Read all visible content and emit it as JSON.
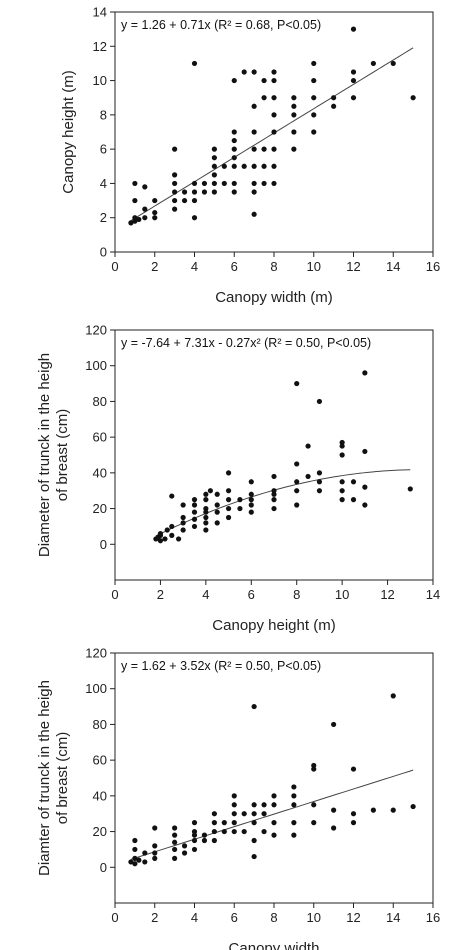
{
  "chart_data": [
    {
      "type": "scatter",
      "xlabel": "Canopy width (m)",
      "ylabel": "Canopy height (m)",
      "equation": "y = 1.26 + 0.71x (R² = 0.68, P<0.05)",
      "xlim": [
        0,
        16
      ],
      "ylim": [
        0,
        14
      ],
      "xticks": [
        0,
        2,
        4,
        6,
        8,
        10,
        12,
        14,
        16
      ],
      "yticks": [
        0,
        2,
        4,
        6,
        8,
        10,
        12,
        14
      ],
      "fit": {
        "kind": "linear",
        "coef": [
          1.26,
          0.71
        ],
        "x_range": [
          0.7,
          15
        ]
      },
      "points": [
        [
          0.8,
          1.7
        ],
        [
          1,
          1.8
        ],
        [
          1,
          2
        ],
        [
          1.2,
          1.9
        ],
        [
          1,
          3
        ],
        [
          1,
          4
        ],
        [
          1.5,
          3.8
        ],
        [
          1.5,
          2
        ],
        [
          1.5,
          2.5
        ],
        [
          2,
          2
        ],
        [
          2,
          2.3
        ],
        [
          2,
          3
        ],
        [
          3,
          2.5
        ],
        [
          3,
          3
        ],
        [
          3,
          3.5
        ],
        [
          3,
          4
        ],
        [
          3,
          4.5
        ],
        [
          3,
          6
        ],
        [
          3.5,
          3
        ],
        [
          3.5,
          3.5
        ],
        [
          4,
          2
        ],
        [
          4,
          3
        ],
        [
          4,
          3.5
        ],
        [
          4,
          4
        ],
        [
          4,
          11
        ],
        [
          4.5,
          3.5
        ],
        [
          4.5,
          4
        ],
        [
          5,
          3.5
        ],
        [
          5,
          4
        ],
        [
          5,
          4.5
        ],
        [
          5,
          5
        ],
        [
          5,
          5.5
        ],
        [
          5,
          6
        ],
        [
          5.5,
          4
        ],
        [
          5.5,
          5
        ],
        [
          6,
          3.5
        ],
        [
          6,
          4
        ],
        [
          6,
          5
        ],
        [
          6,
          5.5
        ],
        [
          6,
          6
        ],
        [
          6,
          6.5
        ],
        [
          6,
          7
        ],
        [
          6,
          10
        ],
        [
          6.5,
          5
        ],
        [
          6.5,
          10.5
        ],
        [
          7,
          2.2
        ],
        [
          7,
          3.5
        ],
        [
          7,
          4
        ],
        [
          7,
          5
        ],
        [
          7,
          6
        ],
        [
          7,
          7
        ],
        [
          7,
          8.5
        ],
        [
          7,
          10.5
        ],
        [
          7.5,
          4
        ],
        [
          7.5,
          5
        ],
        [
          7.5,
          6
        ],
        [
          7.5,
          9
        ],
        [
          7.5,
          10
        ],
        [
          8,
          4
        ],
        [
          8,
          5
        ],
        [
          8,
          6
        ],
        [
          8,
          7
        ],
        [
          8,
          8
        ],
        [
          8,
          9
        ],
        [
          8,
          10
        ],
        [
          8,
          10.5
        ],
        [
          9,
          6
        ],
        [
          9,
          7
        ],
        [
          9,
          8
        ],
        [
          9,
          8.5
        ],
        [
          9,
          9
        ],
        [
          10,
          7
        ],
        [
          10,
          8
        ],
        [
          10,
          9
        ],
        [
          10,
          10
        ],
        [
          10,
          11
        ],
        [
          11,
          8.5
        ],
        [
          11,
          9
        ],
        [
          12,
          9
        ],
        [
          12,
          10
        ],
        [
          12,
          10.5
        ],
        [
          12,
          13
        ],
        [
          13,
          11
        ],
        [
          14,
          11
        ],
        [
          15,
          9
        ]
      ]
    },
    {
      "type": "scatter",
      "xlabel": "Canopy height (m)",
      "ylabel": "Diameter of trunck in the heigh of breast (cm)",
      "ylabel_lines": [
        "Diameter of trunck in the heigh",
        "of breast (cm)"
      ],
      "equation": "y = -7.64 + 7.31x - 0.27x² (R² = 0.50, P<0.05)",
      "xlim": [
        0,
        14
      ],
      "ylim": [
        -20,
        120
      ],
      "xticks": [
        0,
        2,
        4,
        6,
        8,
        10,
        12,
        14
      ],
      "yticks": [
        0,
        20,
        40,
        60,
        80,
        100,
        120
      ],
      "fit": {
        "kind": "poly2",
        "coef": [
          -7.64,
          7.31,
          -0.27
        ],
        "x_range": [
          1.8,
          13
        ]
      },
      "points": [
        [
          1.8,
          3
        ],
        [
          1.9,
          4
        ],
        [
          2,
          2
        ],
        [
          2,
          5
        ],
        [
          2,
          6
        ],
        [
          2.2,
          3
        ],
        [
          2.3,
          8
        ],
        [
          2.5,
          5
        ],
        [
          2.5,
          10
        ],
        [
          2.5,
          27
        ],
        [
          2.8,
          3
        ],
        [
          3,
          8
        ],
        [
          3,
          12
        ],
        [
          3,
          15
        ],
        [
          3,
          22
        ],
        [
          3.5,
          10
        ],
        [
          3.5,
          14
        ],
        [
          3.5,
          18
        ],
        [
          3.5,
          22
        ],
        [
          3.5,
          25
        ],
        [
          4,
          8
        ],
        [
          4,
          12
        ],
        [
          4,
          15
        ],
        [
          4,
          18
        ],
        [
          4,
          20
        ],
        [
          4,
          25
        ],
        [
          4,
          28
        ],
        [
          4.2,
          30
        ],
        [
          4.5,
          12
        ],
        [
          4.5,
          18
        ],
        [
          4.5,
          22
        ],
        [
          4.5,
          28
        ],
        [
          5,
          15
        ],
        [
          5,
          20
        ],
        [
          5,
          25
        ],
        [
          5,
          30
        ],
        [
          5,
          40
        ],
        [
          5.5,
          20
        ],
        [
          5.5,
          25
        ],
        [
          6,
          18
        ],
        [
          6,
          22
        ],
        [
          6,
          25
        ],
        [
          6,
          28
        ],
        [
          6,
          35
        ],
        [
          7,
          20
        ],
        [
          7,
          25
        ],
        [
          7,
          28
        ],
        [
          7,
          30
        ],
        [
          7,
          38
        ],
        [
          8,
          22
        ],
        [
          8,
          30
        ],
        [
          8,
          35
        ],
        [
          8,
          45
        ],
        [
          8,
          90
        ],
        [
          8.5,
          38
        ],
        [
          8.5,
          55
        ],
        [
          9,
          30
        ],
        [
          9,
          35
        ],
        [
          9,
          40
        ],
        [
          9,
          80
        ],
        [
          10,
          25
        ],
        [
          10,
          30
        ],
        [
          10,
          35
        ],
        [
          10,
          50
        ],
        [
          10,
          55
        ],
        [
          10,
          57
        ],
        [
          10.5,
          25
        ],
        [
          10.5,
          35
        ],
        [
          11,
          22
        ],
        [
          11,
          32
        ],
        [
          11,
          52
        ],
        [
          11,
          96
        ],
        [
          13,
          31
        ]
      ]
    },
    {
      "type": "scatter",
      "xlabel": "Canopy width",
      "ylabel": "Diameter of trunck in the heigh of breast (cm)",
      "ylabel_lines": [
        "Diamter of trunck in the heigh",
        "of breast (cm)"
      ],
      "equation": "y = 1.62 + 3.52x (R² = 0.50, P<0.05)",
      "xlim": [
        0,
        16
      ],
      "ylim": [
        -20,
        120
      ],
      "xticks": [
        0,
        2,
        4,
        6,
        8,
        10,
        12,
        14,
        16
      ],
      "yticks": [
        0,
        20,
        40,
        60,
        80,
        100,
        120
      ],
      "fit": {
        "kind": "linear",
        "coef": [
          1.62,
          3.52
        ],
        "x_range": [
          0.8,
          15
        ]
      },
      "points": [
        [
          0.8,
          3
        ],
        [
          1,
          2
        ],
        [
          1,
          5
        ],
        [
          1,
          10
        ],
        [
          1,
          15
        ],
        [
          1.2,
          4
        ],
        [
          1.5,
          3
        ],
        [
          1.5,
          8
        ],
        [
          2,
          5
        ],
        [
          2,
          8
        ],
        [
          2,
          12
        ],
        [
          2,
          22
        ],
        [
          3,
          5
        ],
        [
          3,
          10
        ],
        [
          3,
          14
        ],
        [
          3,
          18
        ],
        [
          3,
          22
        ],
        [
          3.5,
          8
        ],
        [
          3.5,
          12
        ],
        [
          4,
          10
        ],
        [
          4,
          15
        ],
        [
          4,
          18
        ],
        [
          4,
          20
        ],
        [
          4,
          25
        ],
        [
          4.5,
          15
        ],
        [
          4.5,
          18
        ],
        [
          5,
          15
        ],
        [
          5,
          20
        ],
        [
          5,
          25
        ],
        [
          5,
          30
        ],
        [
          5.5,
          20
        ],
        [
          5.5,
          25
        ],
        [
          6,
          20
        ],
        [
          6,
          25
        ],
        [
          6,
          30
        ],
        [
          6,
          35
        ],
        [
          6,
          40
        ],
        [
          6.5,
          20
        ],
        [
          6.5,
          30
        ],
        [
          7,
          6
        ],
        [
          7,
          15
        ],
        [
          7,
          25
        ],
        [
          7,
          30
        ],
        [
          7,
          35
        ],
        [
          7,
          90
        ],
        [
          7.5,
          20
        ],
        [
          7.5,
          30
        ],
        [
          7.5,
          35
        ],
        [
          8,
          18
        ],
        [
          8,
          25
        ],
        [
          8,
          35
        ],
        [
          8,
          40
        ],
        [
          9,
          18
        ],
        [
          9,
          25
        ],
        [
          9,
          35
        ],
        [
          9,
          40
        ],
        [
          9,
          45
        ],
        [
          10,
          25
        ],
        [
          10,
          35
        ],
        [
          10,
          55
        ],
        [
          10,
          57
        ],
        [
          11,
          22
        ],
        [
          11,
          32
        ],
        [
          11,
          80
        ],
        [
          12,
          25
        ],
        [
          12,
          30
        ],
        [
          12,
          55
        ],
        [
          13,
          32
        ],
        [
          14,
          32
        ],
        [
          14,
          96
        ],
        [
          15,
          34
        ]
      ]
    }
  ]
}
